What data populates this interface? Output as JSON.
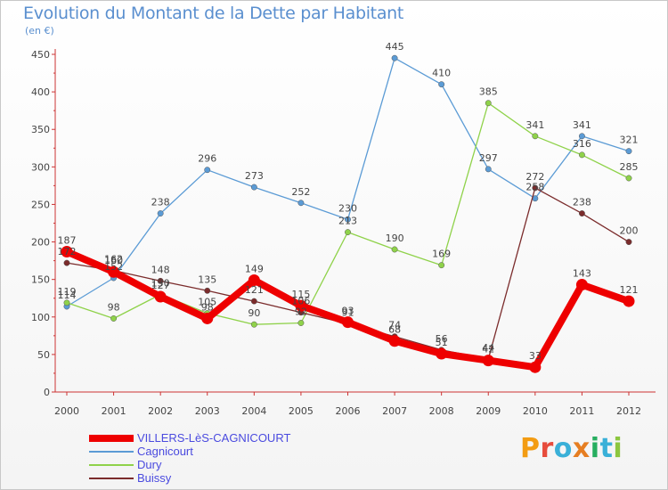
{
  "header": {
    "title": "Evolution du Montant de la Dette par Habitant",
    "unit": "(en €)"
  },
  "logo": {
    "text": "Proxiti",
    "letters": [
      "P",
      "r",
      "o",
      "x",
      "i",
      "t",
      "i"
    ],
    "letter_colors": [
      "#f39c12",
      "#e74c3c",
      "#3ab0d8",
      "#e67e22",
      "#27ae60",
      "#3ab0d8",
      "#8cc63f"
    ]
  },
  "chart_data": {
    "type": "line",
    "title": "Evolution du Montant de la Dette par Habitant",
    "ylabel": "(en €)",
    "xlabel": "",
    "x": [
      "2000",
      "2001",
      "2002",
      "2003",
      "2004",
      "2005",
      "2006",
      "2007",
      "2008",
      "2009",
      "2010",
      "2011",
      "2012"
    ],
    "ylim": [
      0,
      450
    ],
    "yticks": [
      0,
      50,
      100,
      150,
      200,
      250,
      300,
      350,
      400,
      450
    ],
    "ytick_labels": [
      "0",
      "50",
      "100",
      "150",
      "200",
      "250",
      "300",
      "350",
      "400",
      "450"
    ],
    "grid": false,
    "legend_position": "bottom-left",
    "series": [
      {
        "name": "VILLERS-LèS-CAGNICOURT",
        "color": "#ee0000",
        "thick": true,
        "values": [
          187,
          160,
          127,
          98,
          149,
          115,
          93,
          68,
          51,
          42,
          33,
          143,
          121
        ],
        "labels": [
          "187",
          "160",
          "127",
          "98",
          "149",
          "115",
          "93",
          "68",
          "51",
          "42",
          "33",
          "143",
          "121"
        ]
      },
      {
        "name": "Cagnicourt",
        "color": "#5b9bd5",
        "thick": false,
        "values": [
          114,
          152,
          238,
          296,
          273,
          252,
          230,
          445,
          410,
          297,
          258,
          341,
          321
        ],
        "labels": [
          "114",
          "152",
          "238",
          "296",
          "273",
          "252",
          "230",
          "445",
          "410",
          "297",
          "258",
          "341",
          "321"
        ]
      },
      {
        "name": "Dury",
        "color": "#8fd24a",
        "thick": false,
        "values": [
          119,
          98,
          130,
          105,
          90,
          92,
          213,
          190,
          169,
          385,
          341,
          316,
          285
        ],
        "labels": [
          "119",
          "98",
          "130",
          "105",
          "90",
          "92",
          "213",
          "190",
          "169",
          "385",
          "341",
          "316",
          "285"
        ]
      },
      {
        "name": "Buissy",
        "color": "#7b2c2c",
        "thick": false,
        "values": [
          172,
          162,
          148,
          135,
          121,
          106,
          91,
          74,
          56,
          44,
          272,
          238,
          200
        ],
        "labels": [
          "172",
          "162",
          "148",
          "135",
          "121",
          "106",
          "91",
          "74",
          "56",
          "44",
          "272",
          "238",
          "200"
        ]
      }
    ]
  }
}
